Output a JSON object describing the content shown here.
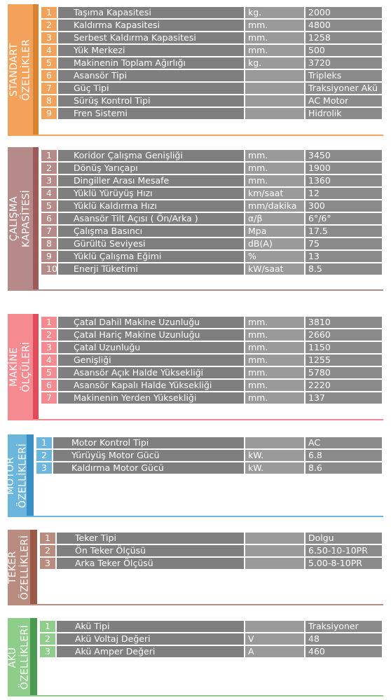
{
  "colors": {
    "standart": "#f2a25b",
    "standart_dark": "#d9822f",
    "calisma": "#b58a88",
    "calisma_dark": "#9d5a58",
    "makine": "#f58a90",
    "makine_dark": "#e34b5a",
    "motor": "#6cb6dd",
    "motor_dark": "#3a8fc4",
    "teker": "#b98c7f",
    "teker_dark": "#9a5a47",
    "aku": "#8fcd8a",
    "aku_dark": "#4a9a52",
    "row_name": "#7f7f7f",
    "row_unit": "#9a9a9a",
    "row_val": "#8b8b8b"
  },
  "sections": [
    {
      "key": "standart",
      "title_line1": "STANDART",
      "title_line2": "ÖZELLİKLER",
      "rows": [
        {
          "no": "1",
          "name": "Taşıma Kapasitesi",
          "unit": "kg.",
          "value": "2000"
        },
        {
          "no": "2",
          "name": "Kaldırma Kapasitesi",
          "unit": "mm.",
          "value": "4800"
        },
        {
          "no": "3",
          "name": "Serbest Kaldırma Kapasitesi",
          "unit": "mm.",
          "value": "1258"
        },
        {
          "no": "4",
          "name": "Yük Merkezi",
          "unit": "mm.",
          "value": "500"
        },
        {
          "no": "5",
          "name": "Makinenin Toplam Ağırlığı",
          "unit": "kg.",
          "value": "3720"
        },
        {
          "no": "6",
          "name": "Asansör Tipi",
          "unit": "",
          "value": "Tripleks"
        },
        {
          "no": "7",
          "name": "Güç Tipi",
          "unit": "",
          "value": "Traksiyoner Akü"
        },
        {
          "no": "8",
          "name": "Sürüş Kontrol Tipi",
          "unit": "",
          "value": "AC Motor"
        },
        {
          "no": "9",
          "name": "Fren Sistemi",
          "unit": "",
          "value": "Hidrolik"
        }
      ]
    },
    {
      "key": "calisma",
      "title_line1": "ÇALIŞMA",
      "title_line2": "KAPASİTESİ",
      "rows": [
        {
          "no": "1",
          "name": "Koridor Çalışma Genişliği",
          "unit": "mm.",
          "value": "3450"
        },
        {
          "no": "2",
          "name": "Dönüş Yarıçapı",
          "unit": "mm.",
          "value": "1900"
        },
        {
          "no": "3",
          "name": "Dingiller Arası Mesafe",
          "unit": "mm.",
          "value": "1360"
        },
        {
          "no": "4",
          "name": "Yüklü Yürüyüş Hızı",
          "unit": "km/saat",
          "value": "12"
        },
        {
          "no": "5",
          "name": "Yüklü Kaldırma Hızı",
          "unit": "mm/dakika",
          "value": "300"
        },
        {
          "no": "6",
          "name": "Asansör Tilt Açısı ( Ön/Arka )",
          "unit": "α/β",
          "value": "6°/6°"
        },
        {
          "no": "7",
          "name": "Çalışma Basıncı",
          "unit": "Mpa",
          "value": "17.5"
        },
        {
          "no": "8",
          "name": "Gürültü Seviyesi",
          "unit": "dB(A)",
          "value": "75"
        },
        {
          "no": "9",
          "name": "Yüklü Çalışma Eğimi",
          "unit": "%",
          "value": "13"
        },
        {
          "no": "10",
          "name": "Enerji Tüketimi",
          "unit": "kW/saat",
          "value": "8.5"
        }
      ]
    },
    {
      "key": "makine",
      "title_line1": "MAKİNE",
      "title_line2": "ÖLÇÜLERİ",
      "rows": [
        {
          "no": "1",
          "name": "Çatal Dahil Makine Uzunluğu",
          "unit": "mm.",
          "value": "3810"
        },
        {
          "no": "2",
          "name": "Çatal Hariç Makine Uzunluğu",
          "unit": "mm.",
          "value": "2660"
        },
        {
          "no": "3",
          "name": "Çatal Uzunluğu",
          "unit": "mm.",
          "value": "1150"
        },
        {
          "no": "4",
          "name": "Genişliği",
          "unit": "mm.",
          "value": "1255"
        },
        {
          "no": "5",
          "name": "Asansör Açık Halde Yüksekliği",
          "unit": "mm.",
          "value": "5780"
        },
        {
          "no": "6",
          "name": "Asansör Kapalı Halde Yüksekliği",
          "unit": "mm.",
          "value": "2220"
        },
        {
          "no": "7",
          "name": "Makinenin Yerden Yüksekliği",
          "unit": "mm.",
          "value": "137"
        }
      ]
    },
    {
      "key": "motor",
      "title_line1": "MOTOR",
      "title_line2": "ÖZELLİKLERİ",
      "rows": [
        {
          "no": "1",
          "name": "Motor Kontrol Tipi",
          "unit": "",
          "value": "AC"
        },
        {
          "no": "2",
          "name": "Yürüyüş Motor Gücü",
          "unit": "kW.",
          "value": "6.8"
        },
        {
          "no": "3",
          "name": "Kaldırma Motor Gücü",
          "unit": "kW.",
          "value": "8.6"
        }
      ]
    },
    {
      "key": "teker",
      "title_line1": "TEKER",
      "title_line2": "ÖZELLİKLERİ",
      "rows": [
        {
          "no": "1",
          "name": "Teker Tipi",
          "unit": "",
          "value": "Dolgu"
        },
        {
          "no": "2",
          "name": "Ön Teker Ölçüsü",
          "unit": "",
          "value": "6.50-10-10PR"
        },
        {
          "no": "3",
          "name": "Arka Teker Ölçüsü",
          "unit": "",
          "value": "5.00-8-10PR"
        }
      ]
    },
    {
      "key": "aku",
      "title_line1": "AKÜ",
      "title_line2": "ÖZELLİKLERİ",
      "rows": [
        {
          "no": "1",
          "name": "Akü Tipi",
          "unit": "",
          "value": "Traksiyoner"
        },
        {
          "no": "2",
          "name": "Akü Voltaj Değeri",
          "unit": "V",
          "value": "48"
        },
        {
          "no": "3",
          "name": "Akü Amper Değeri",
          "unit": "A",
          "value": "460"
        }
      ]
    }
  ]
}
